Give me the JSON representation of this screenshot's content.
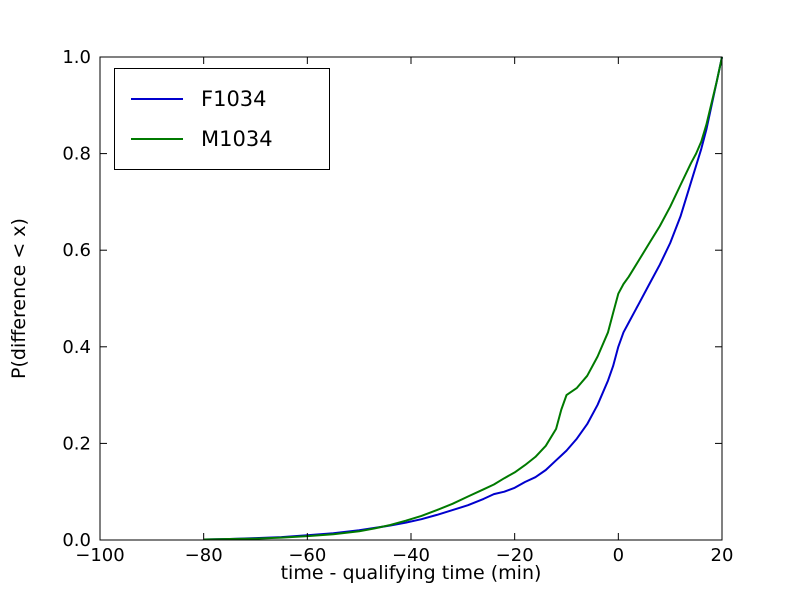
{
  "chart_data": {
    "type": "line",
    "title": "",
    "xlabel": "time - qualifying time (min)",
    "ylabel": "P(difference < x)",
    "xlim": [
      -100,
      20
    ],
    "ylim": [
      0.0,
      1.0
    ],
    "grid": false,
    "legend_position": "upper-left",
    "xticks": {
      "values": [
        -100,
        -80,
        -60,
        -40,
        -20,
        0,
        20
      ],
      "labels": [
        "−100",
        "−80",
        "−60",
        "−40",
        "−20",
        "0",
        "20"
      ]
    },
    "yticks": {
      "values": [
        0.0,
        0.2,
        0.4,
        0.6,
        0.8,
        1.0
      ],
      "labels": [
        "0.0",
        "0.2",
        "0.4",
        "0.6",
        "0.8",
        "1.0"
      ]
    },
    "x": [
      -80,
      -75,
      -70,
      -65,
      -60,
      -55,
      -50,
      -47,
      -44,
      -41,
      -38,
      -35,
      -32,
      -29,
      -26,
      -24,
      -22,
      -20,
      -18,
      -16,
      -14,
      -12,
      -11,
      -10,
      -8,
      -6,
      -4,
      -2,
      -1,
      0,
      1,
      2,
      4,
      6,
      8,
      10,
      12,
      14,
      15,
      16,
      17,
      18,
      19,
      20
    ],
    "series": [
      {
        "name": "F1034",
        "color": "#0000cd",
        "values": [
          0.001,
          0.002,
          0.004,
          0.006,
          0.01,
          0.014,
          0.02,
          0.025,
          0.03,
          0.036,
          0.043,
          0.052,
          0.062,
          0.072,
          0.085,
          0.095,
          0.1,
          0.108,
          0.12,
          0.13,
          0.145,
          0.165,
          0.175,
          0.185,
          0.21,
          0.24,
          0.28,
          0.33,
          0.36,
          0.4,
          0.43,
          0.45,
          0.49,
          0.53,
          0.57,
          0.615,
          0.67,
          0.74,
          0.775,
          0.81,
          0.85,
          0.9,
          0.95,
          1.0
        ]
      },
      {
        "name": "M1034",
        "color": "#007a00",
        "values": [
          0.001,
          0.002,
          0.003,
          0.005,
          0.008,
          0.012,
          0.018,
          0.024,
          0.031,
          0.04,
          0.05,
          0.062,
          0.075,
          0.09,
          0.105,
          0.115,
          0.128,
          0.14,
          0.155,
          0.172,
          0.195,
          0.23,
          0.27,
          0.3,
          0.315,
          0.34,
          0.38,
          0.43,
          0.47,
          0.51,
          0.53,
          0.545,
          0.58,
          0.615,
          0.65,
          0.69,
          0.735,
          0.78,
          0.8,
          0.825,
          0.86,
          0.905,
          0.95,
          1.0
        ]
      }
    ]
  }
}
